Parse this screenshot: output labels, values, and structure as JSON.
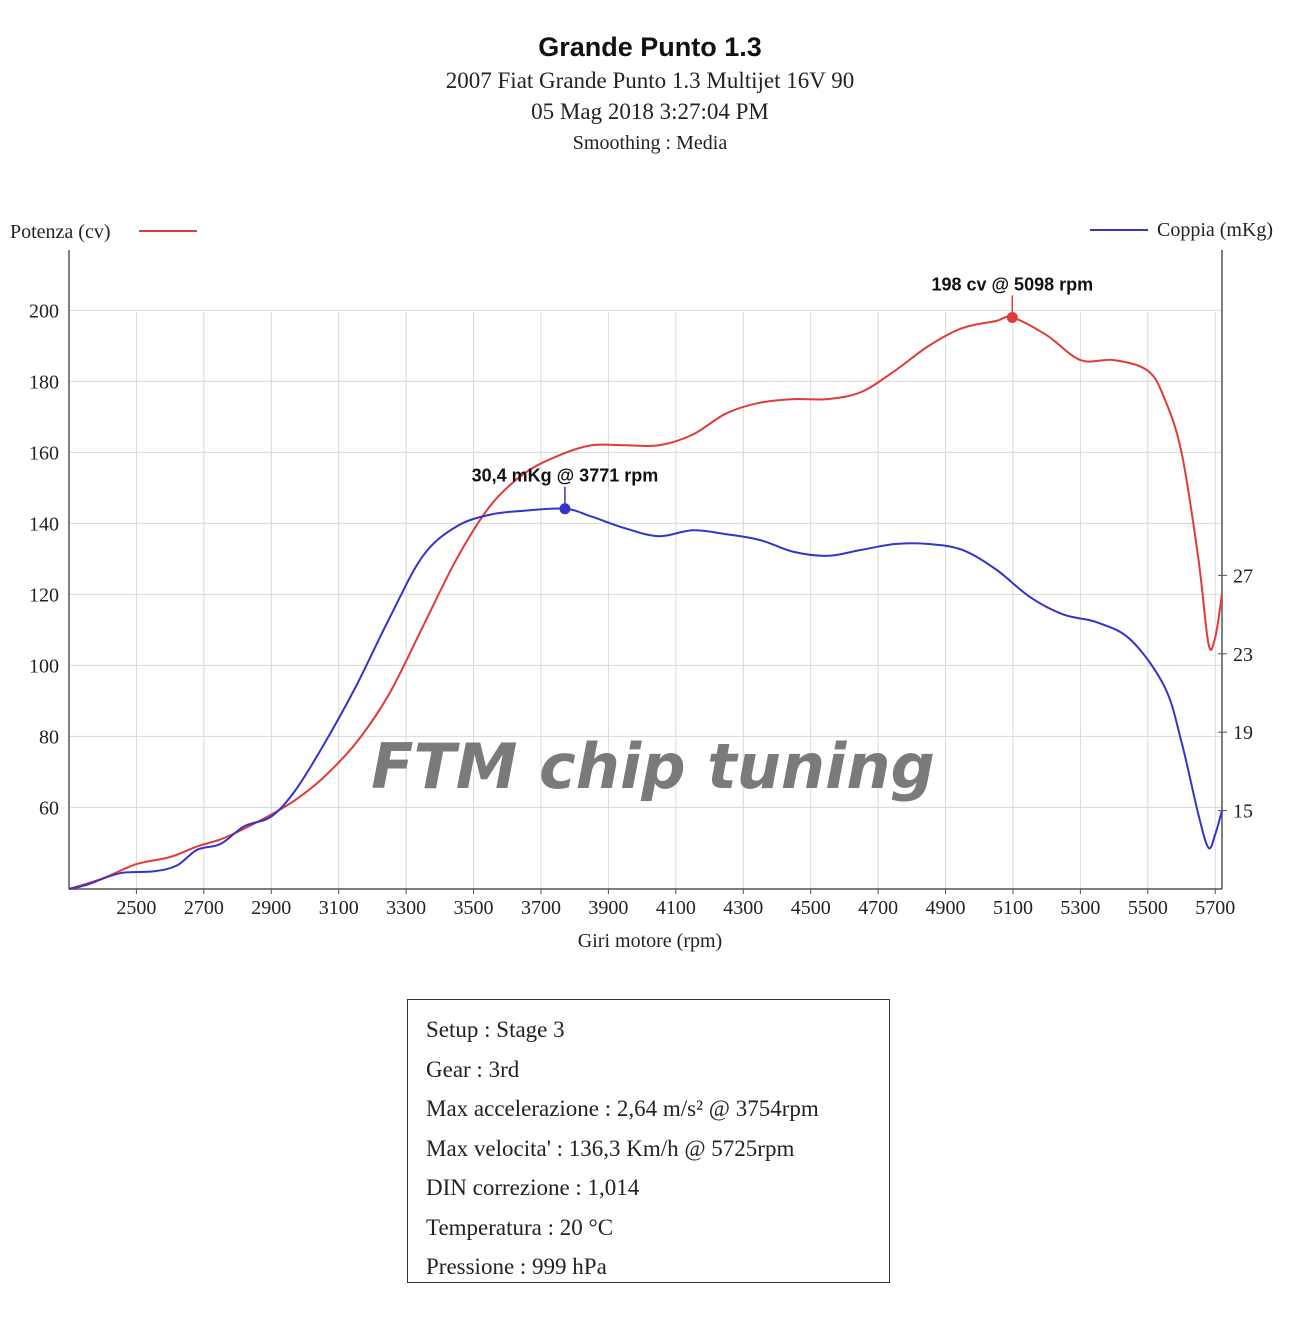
{
  "header": {
    "title": "Grande Punto 1.3",
    "vehicle": "2007 Fiat Grande Punto 1.3 Multijet 16V 90",
    "datetime": "05 Mag 2018 3:27:04 PM",
    "smoothing": "Smoothing : Media"
  },
  "watermark": "FTM chip tuning",
  "info": [
    "Setup : Stage 3",
    "Gear : 3rd",
    "Max accelerazione : 2,64 m/s² @ 3754rpm",
    "Max velocita' : 136,3 Km/h @ 5725rpm",
    "DIN correzione : 1,014",
    "Temperatura : 20 °C",
    "Pressione : 999 hPa"
  ],
  "chart_data": {
    "type": "line",
    "xlabel": "Giri motore (rpm)",
    "x_ticks": [
      2500,
      2700,
      2900,
      3100,
      3300,
      3500,
      3700,
      3900,
      4100,
      4300,
      4500,
      4700,
      4900,
      5100,
      5300,
      5500,
      5700
    ],
    "xlim": [
      2300,
      5720
    ],
    "y_left": {
      "label": "Potenza (cv)",
      "ticks": [
        60,
        80,
        100,
        120,
        140,
        160,
        180,
        200
      ],
      "ylim": [
        37,
        217
      ]
    },
    "y_right": {
      "label": "Coppia (mKg)",
      "ticks": [
        15,
        19,
        23,
        27
      ],
      "ylim": [
        11,
        43.6
      ]
    },
    "grid": true,
    "legend": {
      "left": "Potenza (cv)",
      "right": "Coppia (mKg)"
    },
    "colors": {
      "power": "#e03a3a",
      "torque": "#3434c8",
      "grid": "#d8d8d8",
      "watermark": "#7a7a7a"
    },
    "series": [
      {
        "name": "Potenza (cv)",
        "axis": "left",
        "x": [
          2300,
          2400,
          2500,
          2600,
          2680,
          2750,
          2820,
          2900,
          2970,
          3050,
          3150,
          3250,
          3350,
          3450,
          3550,
          3650,
          3750,
          3850,
          3950,
          4050,
          4150,
          4250,
          4350,
          4450,
          4550,
          4650,
          4750,
          4850,
          4950,
          5050,
          5098,
          5200,
          5300,
          5400,
          5500,
          5550,
          5600,
          5650,
          5680,
          5700,
          5720
        ],
        "y": [
          37,
          40,
          44,
          46,
          49,
          51,
          54,
          58,
          62,
          68,
          78,
          92,
          111,
          130,
          145,
          154,
          159,
          162,
          162,
          162,
          165,
          171,
          174,
          175,
          175,
          177,
          183,
          190,
          195,
          197,
          198,
          193,
          186,
          186,
          183,
          175,
          160,
          130,
          106,
          108,
          120
        ]
      },
      {
        "name": "Coppia (mKg)",
        "axis": "right",
        "x": [
          2300,
          2350,
          2450,
          2550,
          2620,
          2680,
          2750,
          2820,
          2900,
          2970,
          3050,
          3150,
          3250,
          3350,
          3450,
          3550,
          3650,
          3771,
          3850,
          3950,
          4050,
          4150,
          4250,
          4350,
          4450,
          4550,
          4650,
          4750,
          4850,
          4950,
          5050,
          5150,
          5250,
          5350,
          5450,
          5550,
          5600,
          5650,
          5680,
          5700,
          5720
        ],
        "y": [
          11,
          11.2,
          11.8,
          11.9,
          12.2,
          13,
          13.3,
          14.2,
          14.7,
          16,
          18.2,
          21.3,
          24.8,
          28,
          29.5,
          30.1,
          30.3,
          30.4,
          30,
          29.4,
          29,
          29.3,
          29.1,
          28.8,
          28.2,
          28,
          28.3,
          28.6,
          28.6,
          28.3,
          27.3,
          25.9,
          25,
          24.6,
          23.7,
          21.3,
          18.5,
          14.8,
          13.1,
          13.8,
          15
        ]
      }
    ],
    "annotations": [
      {
        "series": "Potenza (cv)",
        "x": 5098,
        "y": 198,
        "text": "198 cv @ 5098 rpm"
      },
      {
        "series": "Coppia (mKg)",
        "x": 3771,
        "y": 30.4,
        "text": "30,4 mKg @ 3771 rpm"
      }
    ]
  }
}
